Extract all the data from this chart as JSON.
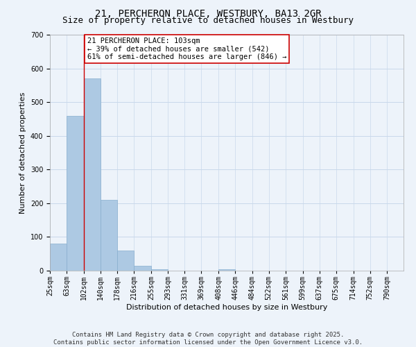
{
  "title_line1": "21, PERCHERON PLACE, WESTBURY, BA13 2GR",
  "title_line2": "Size of property relative to detached houses in Westbury",
  "xlabel": "Distribution of detached houses by size in Westbury",
  "ylabel": "Number of detached properties",
  "bar_edges": [
    25,
    63,
    102,
    140,
    178,
    216,
    255,
    293,
    331,
    369,
    408,
    446,
    484,
    522,
    561,
    599,
    637,
    675,
    714,
    752,
    790,
    828
  ],
  "bar_heights": [
    80,
    460,
    570,
    210,
    60,
    15,
    5,
    0,
    0,
    0,
    5,
    0,
    0,
    0,
    0,
    0,
    0,
    0,
    0,
    0,
    0
  ],
  "bar_color": "#adc9e3",
  "bar_edgecolor": "#88aece",
  "grid_color": "#c8d8eb",
  "bg_color": "#edf3fa",
  "property_line_x": 102,
  "property_line_color": "#cc0000",
  "annotation_text": "21 PERCHERON PLACE: 103sqm\n← 39% of detached houses are smaller (542)\n61% of semi-detached houses are larger (846) →",
  "annotation_box_facecolor": "#ffffff",
  "annotation_box_edgecolor": "#cc0000",
  "ylim": [
    0,
    700
  ],
  "yticks": [
    0,
    100,
    200,
    300,
    400,
    500,
    600,
    700
  ],
  "tick_labels": [
    "25sqm",
    "63sqm",
    "102sqm",
    "140sqm",
    "178sqm",
    "216sqm",
    "255sqm",
    "293sqm",
    "331sqm",
    "369sqm",
    "408sqm",
    "446sqm",
    "484sqm",
    "522sqm",
    "561sqm",
    "599sqm",
    "637sqm",
    "675sqm",
    "714sqm",
    "752sqm",
    "790sqm"
  ],
  "xlim_left": 25,
  "xlim_right": 828,
  "footer_line1": "Contains HM Land Registry data © Crown copyright and database right 2025.",
  "footer_line2": "Contains public sector information licensed under the Open Government Licence v3.0.",
  "title_fontsize": 10,
  "subtitle_fontsize": 9,
  "axis_label_fontsize": 8,
  "tick_fontsize": 7,
  "annotation_fontsize": 7.5,
  "footer_fontsize": 6.5
}
